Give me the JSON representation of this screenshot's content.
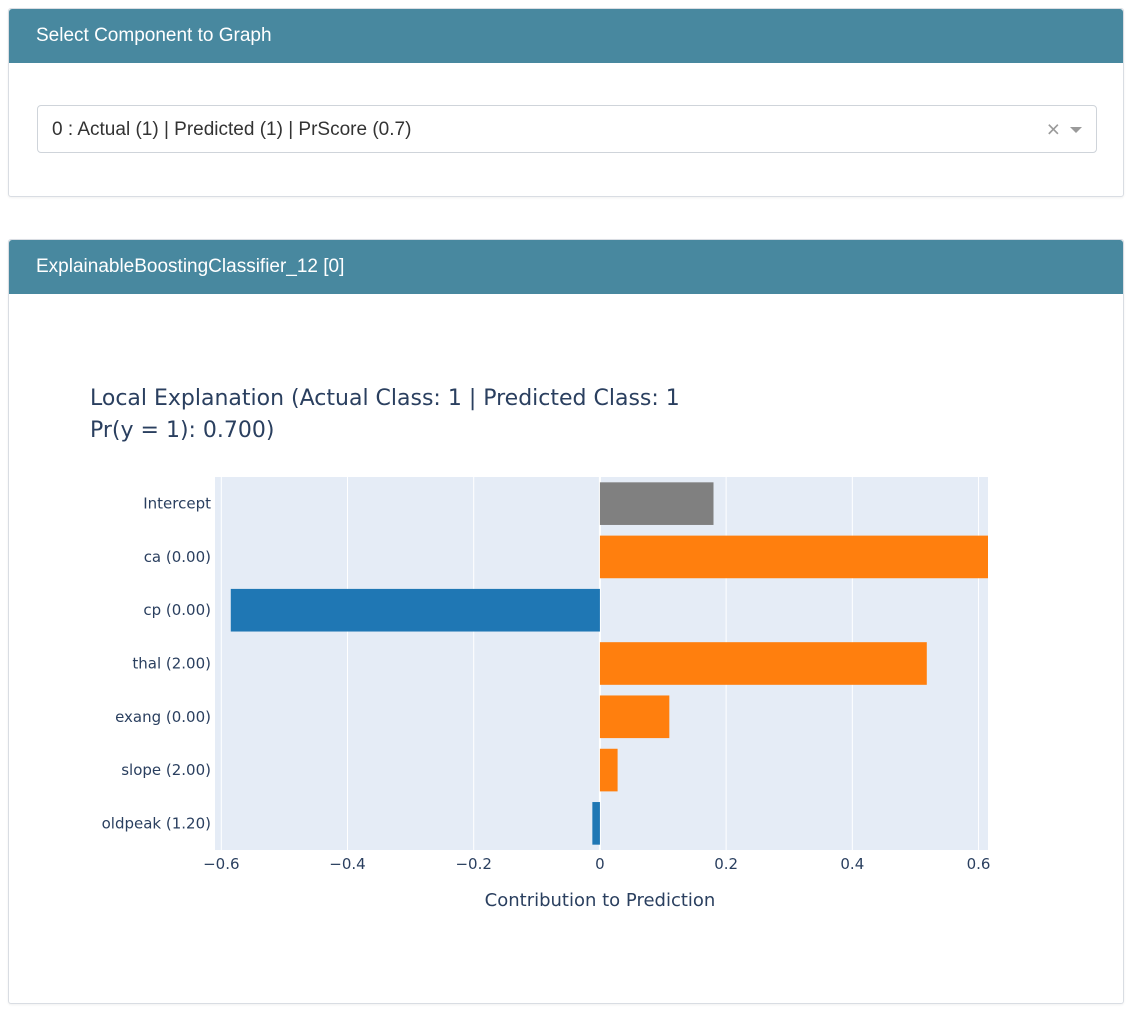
{
  "select_card": {
    "header": "Select Component to Graph",
    "dropdown": {
      "selected_value": "0 : Actual (1) | Predicted (1) | PrScore (0.7)",
      "clear_glyph": "×"
    }
  },
  "graph_card": {
    "header": "ExplainableBoostingClassifier_12 [0]"
  },
  "chart_data": {
    "type": "bar",
    "orientation": "horizontal",
    "title_lines": [
      "Local Explanation (Actual Class: 1 | Predicted Class: 1",
      "Pr(y = 1): 0.700)"
    ],
    "xlabel": "Contribution to Prediction",
    "ylabel": "",
    "xlim": [
      -0.61,
      0.615
    ],
    "xticks": [
      -0.6,
      -0.4,
      -0.2,
      0,
      0.2,
      0.4,
      0.6
    ],
    "xtick_labels": [
      "−0.6",
      "−0.4",
      "−0.2",
      "0",
      "0.2",
      "0.4",
      "0.6"
    ],
    "grid": true,
    "categories": [
      "Intercept",
      "ca (0.00)",
      "cp (0.00)",
      "thal (2.00)",
      "exang (0.00)",
      "slope (2.00)",
      "oldpeak (1.20)"
    ],
    "values": [
      0.18,
      0.615,
      -0.585,
      0.518,
      0.11,
      0.028,
      -0.012
    ],
    "colors": [
      "#808080",
      "#ff7f0e",
      "#1f77b4",
      "#ff7f0e",
      "#ff7f0e",
      "#ff7f0e",
      "#1f77b4"
    ],
    "plot_background": "#e5ecf6"
  }
}
